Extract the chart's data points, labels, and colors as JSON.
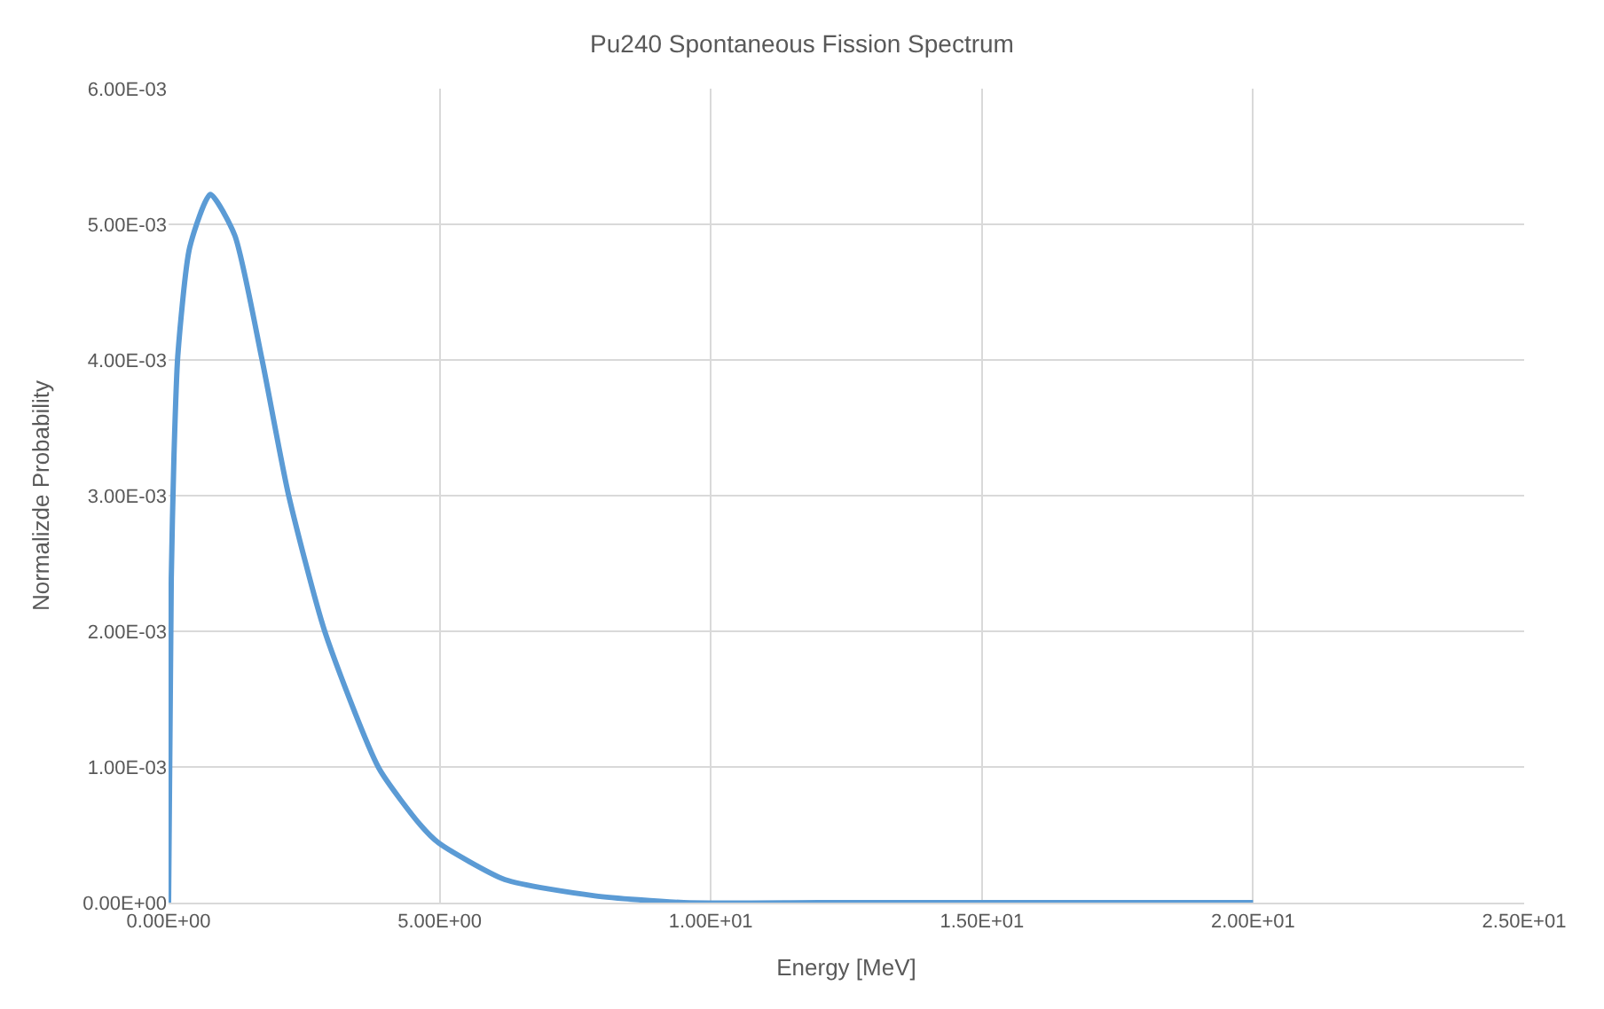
{
  "chart_data": {
    "type": "line",
    "title": "Pu240 Spontaneous Fission Spectrum",
    "xlabel": "Energy [MeV]",
    "ylabel": "Normalizde Probability",
    "x": [
      0,
      0.05,
      0.1,
      0.17,
      0.39,
      0.77,
      1.22,
      1.72,
      2.21,
      2.88,
      3.88,
      4.65,
      4.98,
      6.2,
      7.86,
      9.5,
      12,
      15,
      20
    ],
    "series": [
      {
        "color": "#5b9bd5",
        "values": [
          0,
          0.00239,
          0.0033,
          0.00403,
          0.00483,
          0.00522,
          0.00492,
          0.00401,
          0.00301,
          0.002,
          0.00099,
          0.00057,
          0.00044,
          0.00017,
          5e-05,
          0,
          0,
          0,
          0
        ]
      }
    ],
    "xlim": [
      0,
      25
    ],
    "xticks": [
      {
        "value": 0,
        "label": "0.00E+00"
      },
      {
        "value": 5,
        "label": "5.00E+00"
      },
      {
        "value": 10,
        "label": "1.00E+01"
      },
      {
        "value": 15,
        "label": "1.50E+01"
      },
      {
        "value": 20,
        "label": "2.00E+01"
      },
      {
        "value": 25,
        "label": "2.50E+01"
      }
    ],
    "ylim": [
      0,
      0.006
    ],
    "yticks": [
      {
        "value": 0,
        "label": "0.00E+00"
      },
      {
        "value": 0.001,
        "label": "1.00E-03"
      },
      {
        "value": 0.002,
        "label": "2.00E-03"
      },
      {
        "value": 0.003,
        "label": "3.00E-03"
      },
      {
        "value": 0.004,
        "label": "4.00E-03"
      },
      {
        "value": 0.005,
        "label": "5.00E-03"
      },
      {
        "value": 0.006,
        "label": "6.00E-03"
      }
    ],
    "grid": true,
    "marker": "none",
    "line_style": "solid"
  }
}
